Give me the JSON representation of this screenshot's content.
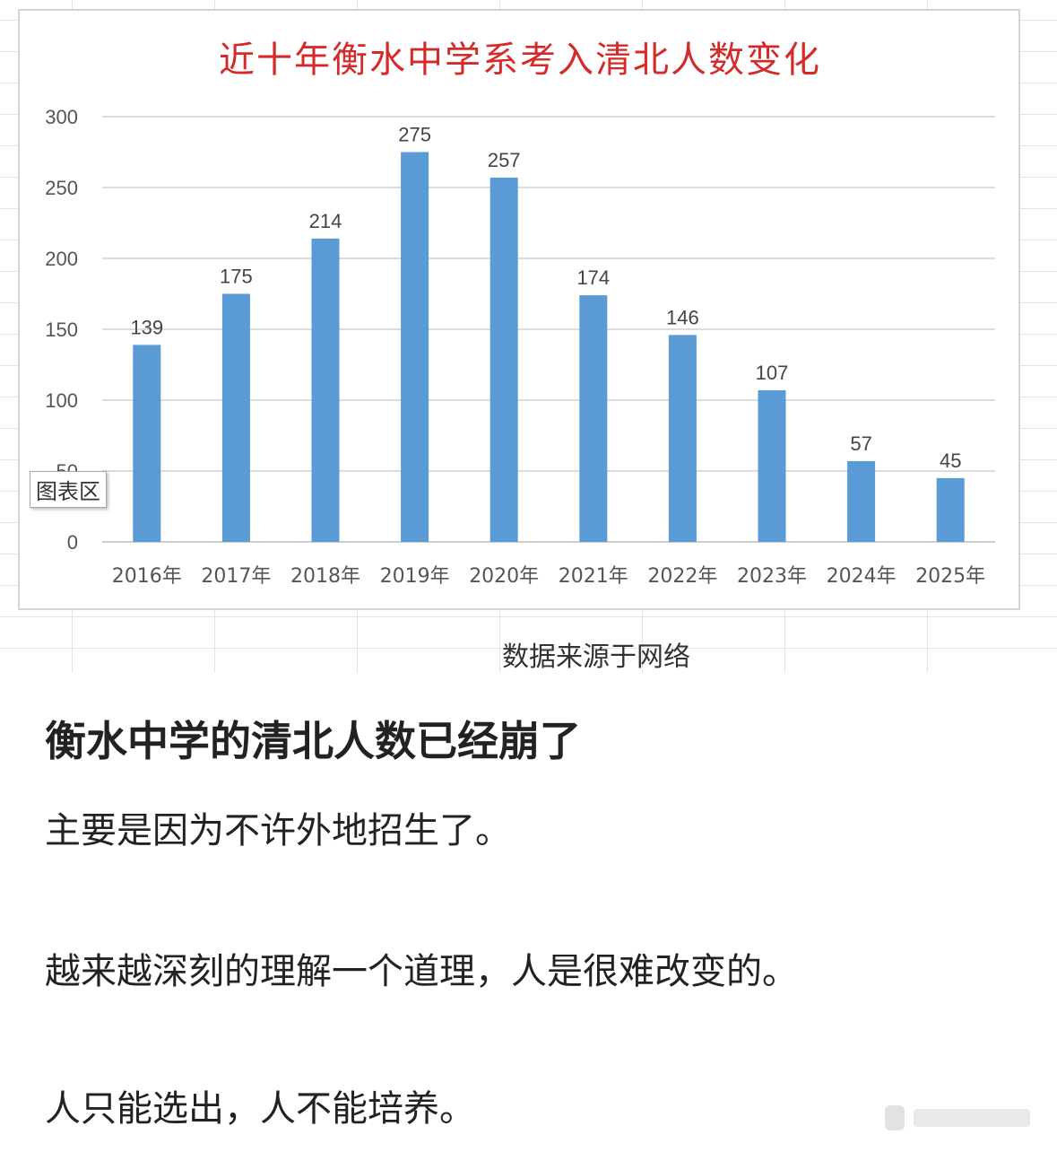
{
  "chart_data": {
    "type": "bar",
    "title": "近十年衡水中学系考入清北人数变化",
    "categories": [
      "2016年",
      "2017年",
      "2018年",
      "2019年",
      "2020年",
      "2021年",
      "2022年",
      "2023年",
      "2024年",
      "2025年"
    ],
    "values": [
      139,
      175,
      214,
      275,
      257,
      174,
      146,
      107,
      57,
      45
    ],
    "y_ticks": [
      "300",
      "250",
      "200",
      "150",
      "100",
      "50",
      "0"
    ],
    "ylim": [
      0,
      300
    ],
    "grid": true,
    "legend": "none",
    "bar_color": "#5b9bd5",
    "title_color": "#d52a2a"
  },
  "tooltip": "图表区",
  "source": "数据来源于网络",
  "headline": "衡水中学的清北人数已经崩了",
  "paragraphs": [
    "主要是因为不许外地招生了。",
    "越来越深刻的理解一个道理，人是很难改变的。",
    "人只能选出，人不能培养。"
  ]
}
